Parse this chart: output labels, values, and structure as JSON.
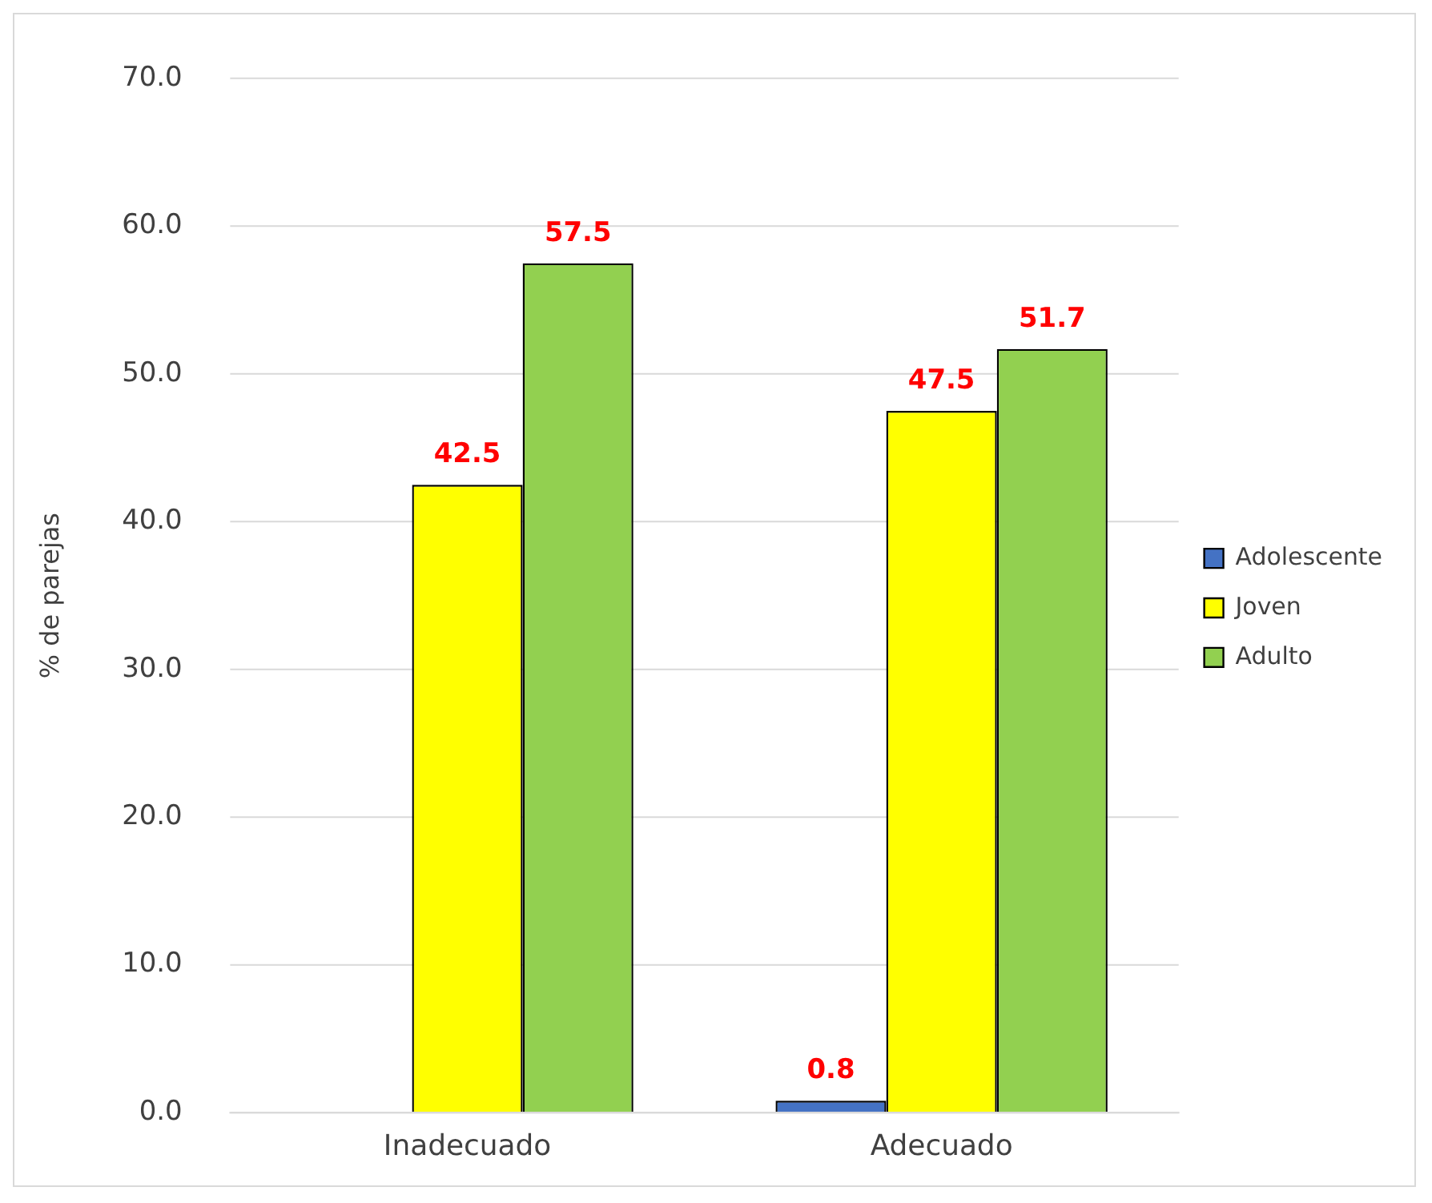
{
  "chart_data": {
    "type": "bar",
    "ylabel": "% de parejas",
    "categories": [
      "Inadecuado",
      "Adecuado"
    ],
    "series": [
      {
        "name": "Adolescente",
        "color": "#4472c4",
        "values": [
          null,
          0.8
        ]
      },
      {
        "name": "Joven",
        "color": "#ffff00",
        "values": [
          42.5,
          47.5
        ]
      },
      {
        "name": "Adulto",
        "color": "#92d050",
        "values": [
          57.5,
          51.7
        ]
      }
    ],
    "ylim": [
      0,
      70
    ],
    "yticks": [
      {
        "value": 0,
        "label": "0.0"
      },
      {
        "value": 10,
        "label": "10.0"
      },
      {
        "value": 20,
        "label": "20.0"
      },
      {
        "value": 30,
        "label": "30.0"
      },
      {
        "value": 40,
        "label": "40.0"
      },
      {
        "value": 50,
        "label": "50.0"
      },
      {
        "value": 60,
        "label": "60.0"
      },
      {
        "value": 70,
        "label": "70.0"
      }
    ],
    "grid": "y",
    "legend": "right",
    "data_labels": true
  }
}
